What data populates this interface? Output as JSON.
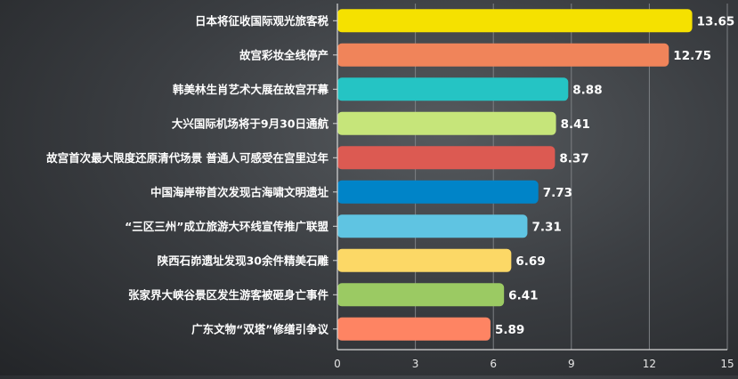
{
  "chart_data": {
    "type": "bar",
    "orientation": "horizontal",
    "categories": [
      "日本将征收国际观光旅客税",
      "故宫彩妆全线停产",
      "韩美林生肖艺术大展在故宫开幕",
      "大兴国际机场将于9月30日通航",
      "故宫首次最大限度还原清代场景 普通人可感受在宫里过年",
      "中国海岸带首次发现古海啸文明遗址",
      "“三区三州”成立旅游大环线宣传推广联盟",
      "陕西石峁遗址发现30余件精美石雕",
      "张家界大峡谷景区发生游客被砸身亡事件",
      "广东文物“双塔”修缮引争议"
    ],
    "values": [
      13.65,
      12.75,
      8.88,
      8.41,
      8.37,
      7.73,
      7.31,
      6.69,
      6.41,
      5.89
    ],
    "value_labels": [
      "13.65",
      "12.75",
      "8.88",
      "8.41",
      "8.37",
      "7.73",
      "7.31",
      "6.69",
      "6.41",
      "5.89"
    ],
    "colors": [
      "#f5e100",
      "#f0845a",
      "#25c4c4",
      "#c6e57a",
      "#dc5a52",
      "#0084c8",
      "#5fc4e2",
      "#fcd866",
      "#9bca63",
      "#fe8463"
    ],
    "xlim": [
      0,
      15
    ],
    "xticks": [
      "0",
      "3",
      "6",
      "9",
      "12",
      "15"
    ],
    "grid": "vertical",
    "title": "",
    "xlabel": "",
    "ylabel": ""
  }
}
